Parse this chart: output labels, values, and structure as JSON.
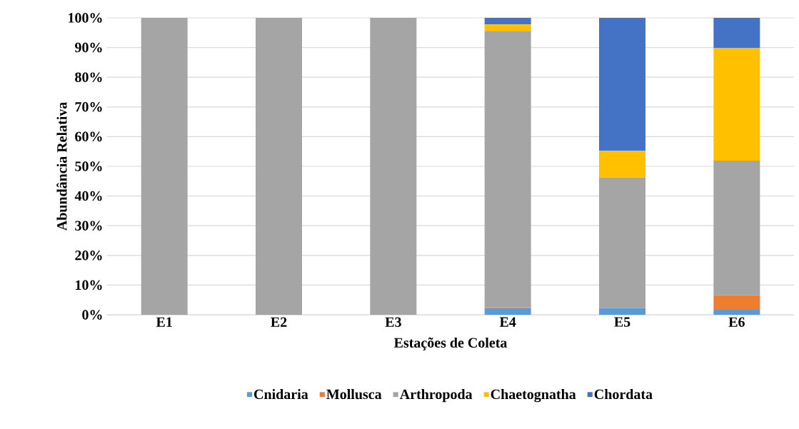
{
  "chart_data": {
    "type": "bar",
    "stacked": true,
    "xlabel": "Estações de Coleta",
    "ylabel": "Abundância Relativa",
    "categories": [
      "E1",
      "E2",
      "E3",
      "E4",
      "E5",
      "E6"
    ],
    "series": [
      {
        "name": "Cnidaria",
        "color": "#5b9bd5",
        "values": [
          0,
          0,
          0,
          2.2,
          2.2,
          1.7
        ]
      },
      {
        "name": "Mollusca",
        "color": "#ed7d31",
        "values": [
          0,
          0,
          0,
          0.3,
          0,
          4.9
        ]
      },
      {
        "name": "Arthropoda",
        "color": "#a5a5a5",
        "values": [
          100,
          100,
          100,
          93.1,
          44.0,
          45.3
        ]
      },
      {
        "name": "Chaetognatha",
        "color": "#ffc000",
        "values": [
          0,
          0,
          0,
          2.2,
          9.0,
          37.9
        ]
      },
      {
        "name": "Chordata",
        "color": "#4472c4",
        "values": [
          0,
          0,
          0,
          2.2,
          44.8,
          10.2
        ]
      }
    ],
    "ylim": [
      0,
      100
    ],
    "yticks": [
      {
        "value": 0,
        "label": "0%"
      },
      {
        "value": 10,
        "label": "10%"
      },
      {
        "value": 20,
        "label": "20%"
      },
      {
        "value": 30,
        "label": "30%"
      },
      {
        "value": 40,
        "label": "40%"
      },
      {
        "value": 50,
        "label": "50%"
      },
      {
        "value": 60,
        "label": "60%"
      },
      {
        "value": 70,
        "label": "70%"
      },
      {
        "value": 80,
        "label": "80%"
      },
      {
        "value": 90,
        "label": "90%"
      },
      {
        "value": 100,
        "label": "100%"
      }
    ],
    "grid": "y",
    "legend": "bottom"
  }
}
